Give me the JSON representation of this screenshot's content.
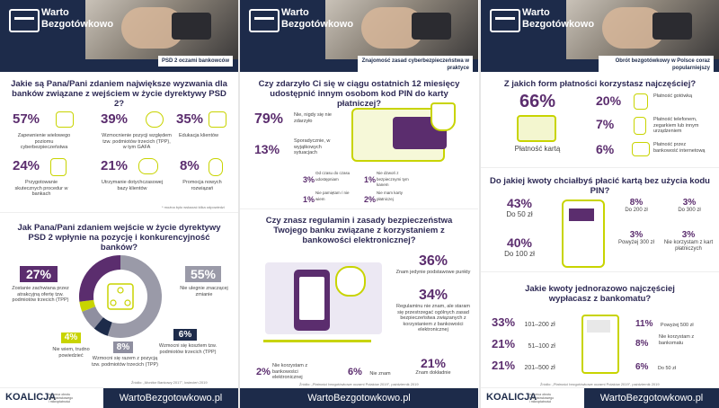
{
  "brand": {
    "logo_line1": "Warto",
    "logo_line2": "Bezgotówkowo",
    "footer_name": "KOALICJA",
    "footer_sub": "na rzecz obrotu bezgotówkowego i mikropłatności",
    "url": "WartoBezgotowkowo.pl"
  },
  "colors": {
    "navy": "#1d2b4a",
    "purple": "#5b2d6e",
    "lime": "#c8d400",
    "grey": "#9a9aa8"
  },
  "panel1": {
    "tag": "PSD 2 oczami bankowców",
    "q1": "Jakie są Pana/Pani zdaniem największe wyzwania dla banków związane z wejściem w życie dyrektywy PSD 2?",
    "items": [
      {
        "pct": "57%",
        "label": "Zapewnienie wielowego poziomu cyberbezpieczeństwa",
        "icon": "shield-icon"
      },
      {
        "pct": "39%",
        "label": "Wzmocnienie pozycji względem tzw. podmiotów trzecich (TPP), w tym GAFA",
        "icon": "network-icon"
      },
      {
        "pct": "35%",
        "label": "Edukacja klientów",
        "icon": "teacher-icon"
      },
      {
        "pct": "24%",
        "label": "Przygotowanie skutecznych procedur w bankach",
        "icon": "document-icon"
      },
      {
        "pct": "21%",
        "label": "Utrzymanie dotychczasowej bazy klientów",
        "icon": "people-icon"
      },
      {
        "pct": "8%",
        "label": "Promocja nowych rozwiązań",
        "icon": "bulb-icon"
      }
    ],
    "note": "* można było wskazać kilka odpowiedzi",
    "q2": "Jak Pana/Pani zdaniem wejście w życie dyrektywy PSD 2 wpłynie na pozycję i konkurencyjność banków?",
    "donut": [
      {
        "pct": "27%",
        "value": 27,
        "label": "Zostanie zachwiana przez atrakcyjną ofertę tzw. podmiotów trzecich (TPP)",
        "color": "#5b2d6e"
      },
      {
        "pct": "55%",
        "value": 55,
        "label": "Nie ulegnie znaczącej zmianie",
        "color": "#9a9aa8"
      },
      {
        "pct": "6%",
        "value": 6,
        "label": "Wzmocni się kosztem tzw. podmiotów trzecich (TPP)",
        "color": "#1d2b4a"
      },
      {
        "pct": "8%",
        "value": 8,
        "label": "Wzmocni się razem z pozycją tzw. podmiotów trzecich (TPP)",
        "color": "#8f8fa0"
      },
      {
        "pct": "4%",
        "value": 4,
        "label": "Nie wiem, trudno powiedzieć",
        "color": "#c8d400"
      }
    ],
    "source": "Źródło: „Monitor Bankowy 2017\", kwiecień 2019"
  },
  "panel2": {
    "tag": "Znajomość zasad cyberbezpieczeństwa w praktyce",
    "q1": "Czy zdarzyło Ci się w ciągu ostatnich 12 miesięcy udostępnić innym osobom kod PIN do karty płatniczej?",
    "main": [
      {
        "pct": "79%",
        "label": "Nie, nigdy się nie zdarzyło"
      },
      {
        "pct": "13%",
        "label": "Sporadycznie, w wyjątkowych sytuacjach"
      }
    ],
    "small": [
      {
        "pct": "3%",
        "label": "Od czasu do czasu udostępniam"
      },
      {
        "pct": "1%",
        "label": "Nie pamiętam / nie wiem"
      },
      {
        "pct": "1%",
        "label": "Nie dzwoń z bezpiecznymi tym kanem"
      },
      {
        "pct": "2%",
        "label": "Nie mam karty płatniczej"
      }
    ],
    "q2": "Czy znasz regulamin i zasady bezpieczeństwa Twojego banku związane z korzystaniem z bankowości elektronicznej?",
    "right": [
      {
        "pct": "36%",
        "label": "Znam jedynie podstawowe punkty"
      },
      {
        "pct": "34%",
        "label": "Regulaminu nie znam, ale staram się przestrzegać ogólnych zasad bezpieczeństwa związanych z korzystaniem z bankowości elektronicznej"
      },
      {
        "pct": "21%",
        "label": "Znam dokładnie"
      }
    ],
    "bottom": [
      {
        "pct": "2%",
        "label": "Nie korzystam z bankowości elektronicznej"
      },
      {
        "pct": "6%",
        "label": "Nie znam"
      }
    ],
    "source": "Źródło: „Płatności bezgotówkowe oczami Polaków 2019\", październik 2019"
  },
  "panel3": {
    "tag": "Obrót bezgotówkowy w Polsce coraz popularniejszy",
    "q1": "Z jakich form płatności korzystasz najczęściej?",
    "card": {
      "pct": "66%",
      "label": "Płatność kartą"
    },
    "forms": [
      {
        "pct": "20%",
        "label": "Płatność gotówką",
        "icon": "cash-icon"
      },
      {
        "pct": "7%",
        "label": "Płatność telefonem, zegarkiem lub innym urządzeniem",
        "icon": "phone-icon"
      },
      {
        "pct": "6%",
        "label": "Płatność przez bankowość internetową",
        "icon": "laptop-icon"
      }
    ],
    "q2": "Do jakiej kwoty chciałbyś płacić kartą bez użycia kodu PIN?",
    "pin_left": [
      {
        "pct": "43%",
        "label": "Do 50 zł"
      },
      {
        "pct": "40%",
        "label": "Do 100 zł"
      }
    ],
    "pin_right": [
      {
        "pct": "8%",
        "label": "Do 200 zł"
      },
      {
        "pct": "3%",
        "label": "Do 300 zł"
      },
      {
        "pct": "3%",
        "label": "Powyżej 300 zł"
      },
      {
        "pct": "3%",
        "label": "Nie korzystam z kart płatniczych"
      }
    ],
    "q3": "Jakie kwoty jednorazowo najczęściej wypłacasz z bankomatu?",
    "atm_left": [
      {
        "pct": "33%",
        "label": "101–200 zł"
      },
      {
        "pct": "21%",
        "label": "51–100 zł"
      },
      {
        "pct": "21%",
        "label": "201–500 zł"
      }
    ],
    "atm_right": [
      {
        "pct": "11%",
        "label": "Powyżej 500 zł"
      },
      {
        "pct": "8%",
        "label": "Nie korzystam z bankomatu"
      },
      {
        "pct": "6%",
        "label": "Do 50 zł"
      }
    ],
    "source": "Źródło: „Płatności bezgotówkowe oczami Polaków 2019\", październik 2019"
  }
}
